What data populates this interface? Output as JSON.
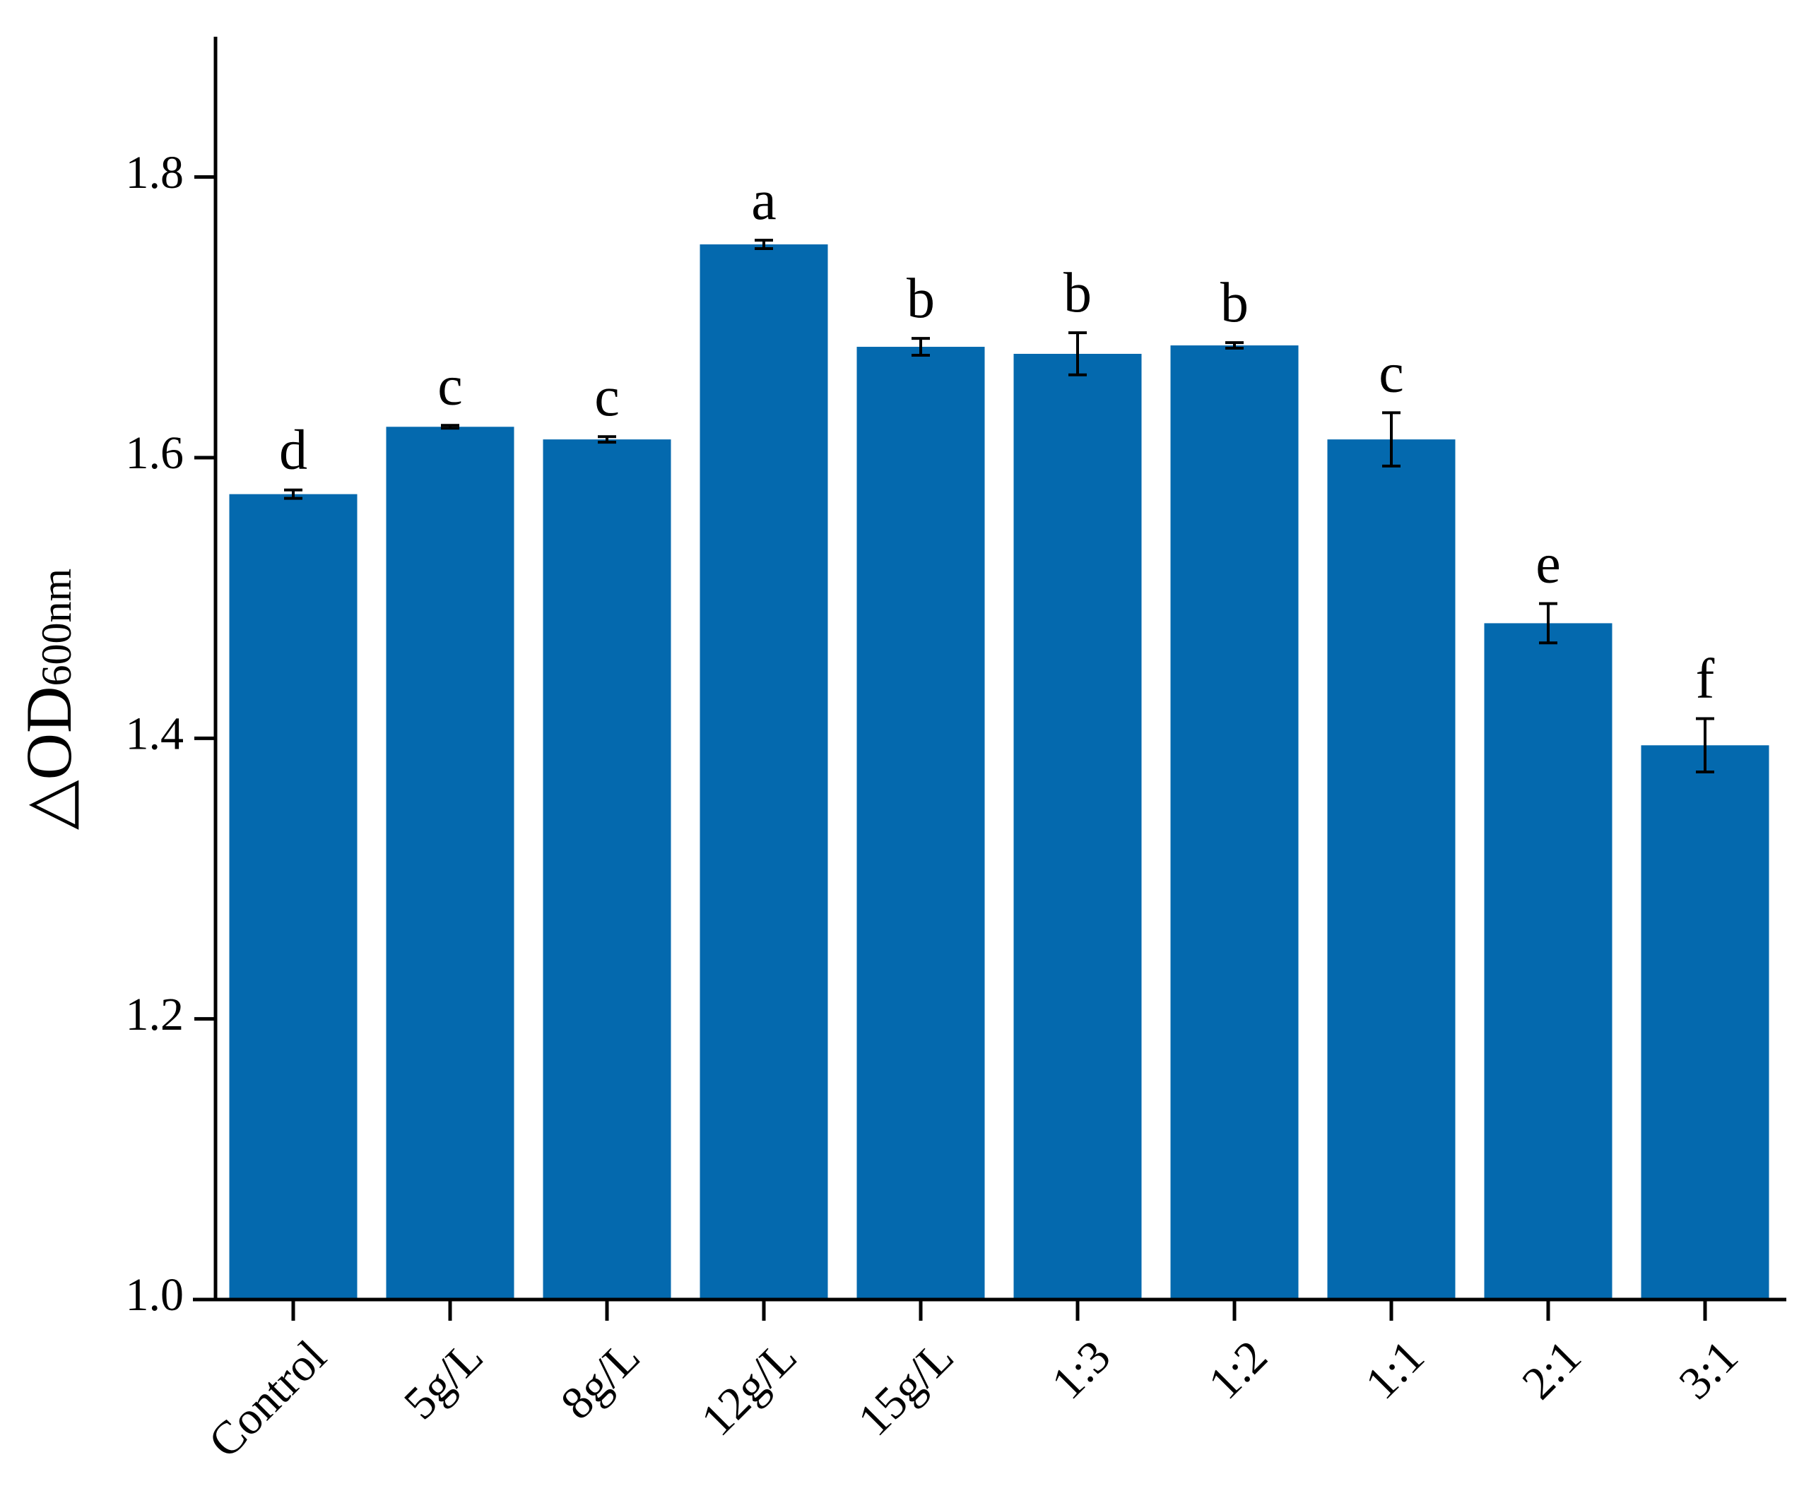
{
  "chart_data": {
    "type": "bar",
    "y_label": "△OD",
    "y_label_sub": "600nm",
    "categories": [
      "Control",
      "5g/L",
      "8g/L",
      "12g/L",
      "15g/L",
      "1:3",
      "1:2",
      "1:1",
      "2:1",
      "3:1"
    ],
    "values": [
      1.574,
      1.622,
      1.613,
      1.752,
      1.679,
      1.674,
      1.68,
      1.613,
      1.482,
      1.395
    ],
    "errors": [
      0.003,
      0.001,
      0.002,
      0.003,
      0.006,
      0.015,
      0.002,
      0.019,
      0.014,
      0.019
    ],
    "letters": [
      "d",
      "c",
      "c",
      "a",
      "b",
      "b",
      "b",
      "c",
      "e",
      "f"
    ],
    "color": "#0469ae",
    "ylim": [
      1.0,
      1.9
    ],
    "yticks": [
      {
        "value": 1.0,
        "label": "1.0"
      },
      1.2,
      1.4,
      1.6,
      1.8
    ]
  }
}
